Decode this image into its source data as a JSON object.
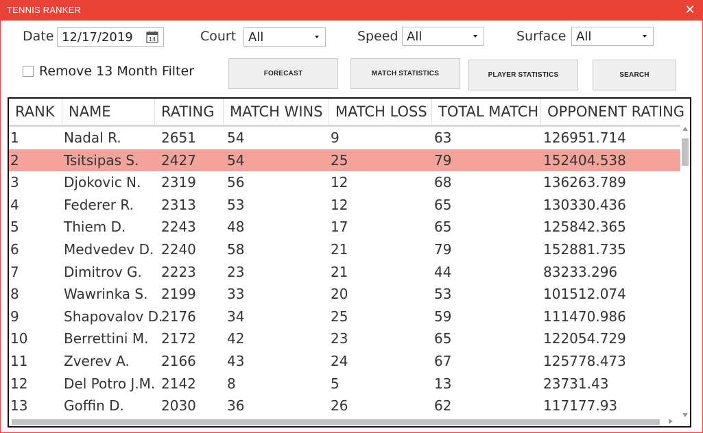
{
  "window": {
    "title": "TENNIS RANKER",
    "close_glyph": "✕"
  },
  "filters": {
    "date_label": "Date",
    "date_value": "12/17/2019",
    "calendar_day": "14",
    "court_label": "Court",
    "court_value": "All",
    "speed_label": "Speed",
    "speed_value": "All",
    "surface_label": "Surface",
    "surface_value": "All",
    "remove_filter_label": "Remove 13 Month Filter",
    "remove_filter_checked": false
  },
  "buttons": {
    "forecast": "FORECAST",
    "match_statistics": "MATCH STATISTICS",
    "player_statistics": "PLAYER STATISTICS",
    "search": "SEARCH"
  },
  "table": {
    "headers": [
      "RANK",
      "NAME",
      "RATING",
      "MATCH WINS",
      "MATCH LOSS",
      "TOTAL MATCH",
      "OPPONENT RATING"
    ],
    "selected_index": 1,
    "rows": [
      [
        "1",
        "Nadal R.",
        "2651",
        "54",
        "9",
        "63",
        "126951.714"
      ],
      [
        "2",
        "Tsitsipas S.",
        "2427",
        "54",
        "25",
        "79",
        "152404.538"
      ],
      [
        "3",
        "Djokovic N.",
        "2319",
        "56",
        "12",
        "68",
        "136263.789"
      ],
      [
        "4",
        "Federer R.",
        "2313",
        "53",
        "12",
        "65",
        "130330.436"
      ],
      [
        "5",
        "Thiem D.",
        "2243",
        "48",
        "17",
        "65",
        "125842.365"
      ],
      [
        "6",
        "Medvedev D.",
        "2240",
        "58",
        "21",
        "79",
        "152881.735"
      ],
      [
        "7",
        "Dimitrov G.",
        "2223",
        "23",
        "21",
        "44",
        "83233.296"
      ],
      [
        "8",
        "Wawrinka S.",
        "2199",
        "33",
        "20",
        "53",
        "101512.074"
      ],
      [
        "9",
        "Shapovalov D.",
        "2176",
        "34",
        "25",
        "59",
        "111470.986"
      ],
      [
        "10",
        "Berrettini M.",
        "2172",
        "42",
        "23",
        "65",
        "122054.729"
      ],
      [
        "11",
        "Zverev A.",
        "2166",
        "43",
        "24",
        "67",
        "125778.473"
      ],
      [
        "12",
        "Del Potro J.M.",
        "2142",
        "8",
        "5",
        "13",
        "23731.43"
      ],
      [
        "13",
        "Goffin D.",
        "2030",
        "36",
        "26",
        "62",
        "117177.93"
      ]
    ]
  },
  "colors": {
    "titlebar": "#ea4234",
    "selected_row": "#f4a39c"
  }
}
